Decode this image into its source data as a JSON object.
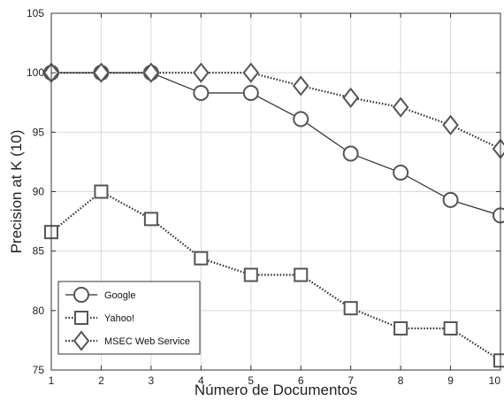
{
  "chart_data": {
    "type": "line",
    "title": "",
    "xlabel": "Número de Documentos",
    "ylabel": "Precision at K (10)",
    "xlim": [
      1,
      10
    ],
    "ylim": [
      75,
      105
    ],
    "x_ticks": [
      "1",
      "2",
      "3",
      "4",
      "5",
      "6",
      "7",
      "8",
      "9",
      "10"
    ],
    "y_ticks": [
      "75",
      "80",
      "85",
      "90",
      "95",
      "100",
      "105"
    ],
    "grid": true,
    "legend_position": "bottom-left",
    "x": [
      1,
      2,
      3,
      4,
      5,
      6,
      7,
      8,
      9,
      10
    ],
    "series": [
      {
        "name": "Google",
        "marker": "circle",
        "line_style": "solid",
        "values": [
          100,
          100,
          100,
          98.3,
          98.3,
          96.1,
          93.2,
          91.6,
          89.3,
          88.0
        ]
      },
      {
        "name": "Yahoo!",
        "marker": "square",
        "line_style": "dotted",
        "values": [
          86.6,
          90.0,
          87.7,
          84.4,
          83.0,
          83.0,
          80.2,
          78.5,
          78.5,
          75.8
        ]
      },
      {
        "name": "MSEC Web Service",
        "marker": "diamond",
        "line_style": "dotted",
        "values": [
          100,
          100,
          100,
          100,
          100,
          98.9,
          97.9,
          97.1,
          95.6,
          93.6
        ]
      }
    ],
    "colors": {
      "line": "#2b2b2b",
      "marker_stroke": "#555555",
      "grid": "#d9d9d9",
      "axis": "#333333"
    }
  }
}
